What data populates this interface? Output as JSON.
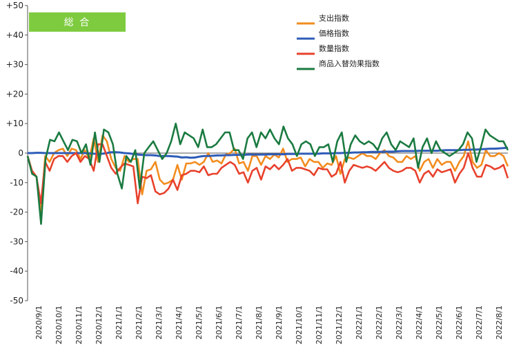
{
  "chart_data": {
    "type": "line",
    "title": "総 合",
    "badge_color": "#7ecb3f",
    "ylim": [
      -50,
      50
    ],
    "y_ticks": [
      "+50",
      "+40",
      "+30",
      "+20",
      "+10",
      "0",
      "-10",
      "-20",
      "-30",
      "-40",
      "-50"
    ],
    "y_tick_values": [
      50,
      40,
      30,
      20,
      10,
      0,
      -10,
      -20,
      -30,
      -40,
      -50
    ],
    "x_tick_labels": [
      "2020/9/1",
      "2020/10/1",
      "2020/11/1",
      "2020/12/1",
      "2021/1/1",
      "2021/2/1",
      "2021/3/1",
      "2021/4/1",
      "2021/5/1",
      "2021/6/1",
      "2021/7/1",
      "2021/8/1",
      "2021/9/1",
      "2021/10/1",
      "2021/11/1",
      "2021/12/1",
      "2022/1/1",
      "2022/2/1",
      "2022/3/1",
      "2022/4/1",
      "2022/5/1",
      "2022/6/1",
      "2022/7/1",
      "2022/8/1"
    ],
    "grid": "none",
    "legend_position": "top-right",
    "series": [
      {
        "name": "支出指数",
        "color": "#f28c1e",
        "values": [
          -1,
          -6,
          -8,
          -20,
          -1,
          -3,
          0,
          1,
          1.5,
          -1,
          1.5,
          1,
          -2,
          1,
          -2,
          5,
          -3,
          6,
          4,
          -2,
          -5,
          -6,
          -1,
          -3,
          -2,
          -2,
          -14,
          -6,
          -5.5,
          -3,
          -9,
          -10.5,
          -10,
          -9,
          -4,
          -9,
          -3.5,
          -3.5,
          -3,
          -4,
          -3,
          0,
          -3,
          -2.5,
          -3.5,
          -0.5,
          0,
          1.5,
          -3.5,
          -3,
          -6,
          -1,
          -1,
          -4,
          -1,
          -2,
          -0.5,
          -1.5,
          1.5,
          -3,
          -2,
          -2,
          -1.5,
          -4.5,
          -2,
          -3,
          -3,
          -5,
          -3.5,
          -4,
          -1,
          -7,
          -2,
          -1.5,
          -2,
          -1,
          0,
          -1,
          -1,
          -2,
          0,
          1,
          -1,
          -1.5,
          -3,
          -3,
          -1,
          -2,
          -1,
          -6,
          -3,
          -2,
          -5,
          -2,
          -4,
          -3,
          -3,
          -6,
          -3,
          -1,
          4,
          -3,
          -5,
          -4,
          1,
          -1,
          -1,
          0,
          -1,
          -4.5
        ]
      },
      {
        "name": "価格指数",
        "color": "#2e5cb8",
        "values": [
          0,
          0,
          0.1,
          0.1,
          0,
          0,
          0,
          0,
          0,
          0,
          0,
          0,
          0,
          0,
          -0.1,
          -0.2,
          -0.3,
          -0.2,
          0,
          0.3,
          0.3,
          0.2,
          0,
          -0.1,
          -0.3,
          -0.5,
          -0.6,
          -0.7,
          -0.7,
          -0.8,
          -1,
          -1,
          -1,
          -1.1,
          -1.2,
          -1.5,
          -1.4,
          -1.6,
          -1.5,
          -1.2,
          -1,
          -1,
          -0.9,
          -0.8,
          -0.8,
          -0.7,
          -0.7,
          -0.6,
          -0.6,
          -0.6,
          -0.5,
          -0.5,
          -0.5,
          -0.5,
          -0.5,
          -0.4,
          -0.4,
          -0.4,
          -0.4,
          -0.3,
          -0.3,
          -0.3,
          -0.2,
          -0.2,
          -0.2,
          -0.2,
          -0.2,
          -0.1,
          -0.1,
          -0.1,
          0,
          0,
          0.1,
          0.1,
          0.2,
          0.2,
          0.3,
          0.3,
          0.4,
          0.4,
          0.4,
          0.5,
          0.5,
          0.5,
          0.6,
          0.7,
          0.7,
          0.7,
          0.7,
          0.8,
          0.8,
          0.8,
          0.8,
          0.8,
          0.9,
          1,
          1,
          1,
          1,
          1.1,
          1.1,
          1.2,
          1.2,
          1.3,
          1.4,
          1.5,
          1.5,
          1.6,
          1.7,
          1.8
        ]
      },
      {
        "name": "数量指数",
        "color": "#e8412c",
        "values": [
          -1,
          -6,
          -8,
          -17,
          -3,
          -6,
          -2,
          -1,
          -1,
          -3,
          -1,
          0,
          -3,
          -1,
          -2,
          -6,
          3,
          3,
          -1,
          -5,
          -7,
          -5,
          -3.5,
          -4,
          -4.5,
          -17,
          -8,
          -8.5,
          -7.5,
          -13,
          -14,
          -13.5,
          -12,
          -9,
          -12.5,
          -7.5,
          -7,
          -6,
          -6,
          -6.5,
          -4.5,
          -7.5,
          -7,
          -7,
          -5,
          -4,
          -3,
          -4,
          -7,
          -6.5,
          -10,
          -6,
          -5,
          -9,
          -4.5,
          -5.5,
          -4,
          -5.5,
          -4,
          -2,
          -6,
          -5,
          -5,
          -5.5,
          -6,
          -7.5,
          -5,
          -5.5,
          -5.5,
          -8,
          -7,
          -3,
          -10,
          -6,
          -4,
          -4.5,
          -5,
          -4.5,
          -5,
          -6,
          -4.5,
          -3,
          -5,
          -6,
          -6.5,
          -6,
          -5,
          -5,
          -6,
          -10,
          -7,
          -6,
          -8,
          -5.5,
          -6.5,
          -6,
          -5.5,
          -10,
          -7,
          -5,
          0,
          -5,
          -8,
          -8,
          -4,
          -4.5,
          -5.5,
          -5,
          -4,
          -8.5
        ]
      },
      {
        "name": "商品入替効果指数",
        "color": "#1a7a40",
        "values": [
          -1,
          -7,
          -8,
          -24,
          -2,
          4.5,
          4,
          7,
          4,
          1,
          4.5,
          4,
          0,
          3,
          -4,
          7,
          -3,
          8,
          7,
          3,
          -7,
          -12,
          -1,
          -3,
          1,
          -12,
          0,
          2,
          4,
          1,
          -2,
          0,
          4,
          10,
          3,
          7,
          6,
          5,
          2,
          8,
          2,
          2,
          3,
          5,
          7,
          7,
          1,
          1,
          -2,
          5,
          7,
          2,
          7,
          5,
          8,
          5,
          3,
          9,
          5,
          3,
          -1,
          3,
          4,
          3,
          -1,
          2,
          2,
          3,
          -3,
          4,
          7,
          -3,
          3,
          6,
          4,
          3,
          4,
          3,
          1,
          5,
          7,
          3,
          1,
          4,
          3,
          2,
          5,
          -5,
          2,
          5,
          0,
          4,
          1,
          0,
          -1,
          0,
          1,
          3,
          7,
          5,
          -3,
          2,
          8,
          6,
          5,
          4,
          4,
          1
        ]
      }
    ]
  }
}
